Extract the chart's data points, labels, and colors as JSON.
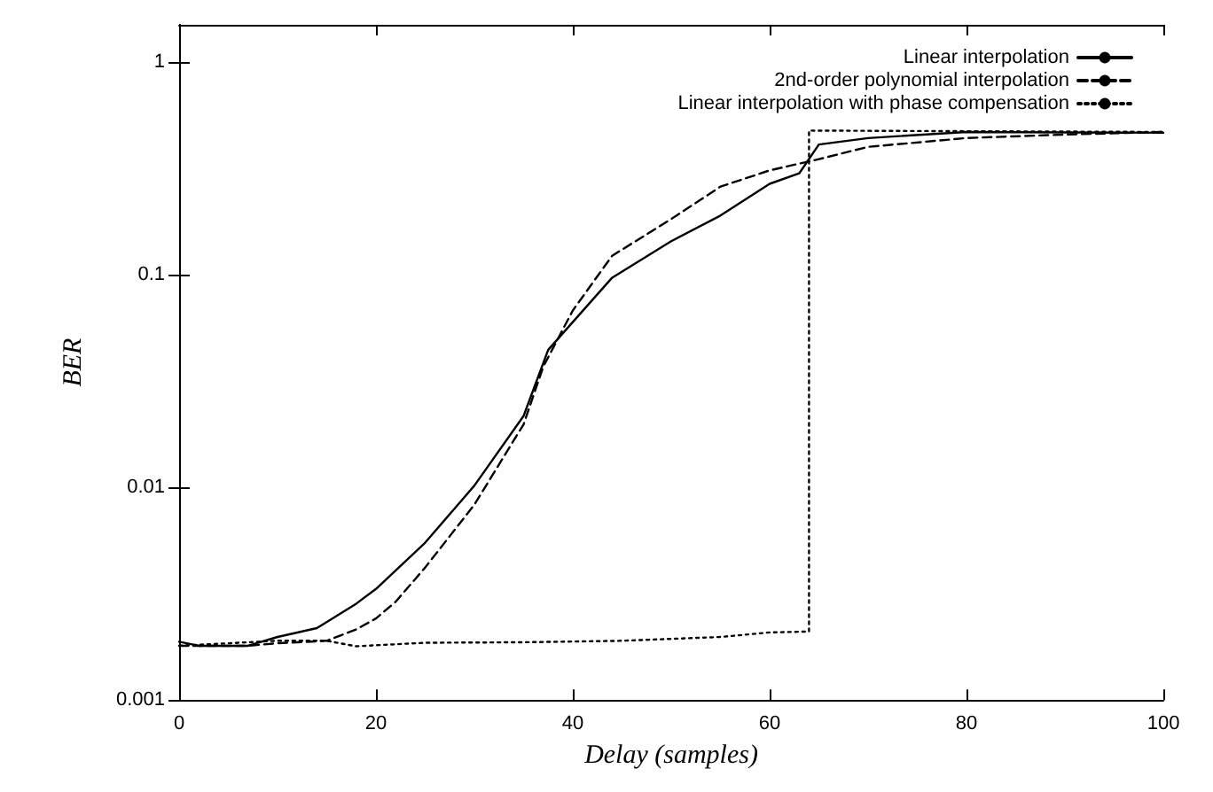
{
  "chart_data": {
    "type": "line",
    "xlabel": "Delay (samples)",
    "ylabel": "BER",
    "log": "y",
    "grid": false,
    "legend": "top right",
    "marker": "none",
    "xlim": [
      0,
      100
    ],
    "xticks": [
      0,
      20,
      40,
      60,
      80,
      100
    ],
    "ylim": [
      0.001,
      1.5
    ],
    "yticks": [
      0.001,
      0.01,
      0.1,
      1
    ],
    "series": [
      {
        "name": "Linear interpolation",
        "color": "#000000",
        "line_style": "solid",
        "x": [
          0,
          2,
          7,
          10,
          14,
          18,
          20,
          25,
          30,
          35,
          37.5,
          44,
          50,
          55,
          60,
          63,
          65,
          70,
          80,
          100
        ],
        "values": [
          0.00188,
          0.0018,
          0.0018,
          0.00198,
          0.00218,
          0.00284,
          0.00333,
          0.0055,
          0.0102,
          0.0217,
          0.0444,
          0.097,
          0.144,
          0.19,
          0.268,
          0.3,
          0.41,
          0.44,
          0.47,
          0.466
        ]
      },
      {
        "name": "2nd-order polynomial interpolation",
        "color": "#000000",
        "line_style": "dashed",
        "x": [
          0,
          7,
          10,
          15,
          18,
          20,
          22,
          25,
          30,
          35,
          37,
          40,
          44,
          50,
          55,
          60,
          65,
          70,
          80,
          90,
          100
        ],
        "values": [
          0.0018,
          0.0018,
          0.00185,
          0.0019,
          0.00215,
          0.00242,
          0.0029,
          0.0042,
          0.0083,
          0.0198,
          0.037,
          0.068,
          0.123,
          0.183,
          0.26,
          0.31,
          0.35,
          0.4,
          0.44,
          0.457,
          0.47
        ]
      },
      {
        "name": "Linear interpolation with phase compensation",
        "color": "#000000",
        "line_style": "dotted",
        "x": [
          0,
          10,
          15,
          18,
          25,
          35,
          45,
          55,
          60,
          64,
          64,
          100
        ],
        "values": [
          0.0018,
          0.0019,
          0.0019,
          0.00179,
          0.00186,
          0.00187,
          0.0019,
          0.00198,
          0.00208,
          0.0021,
          0.477,
          0.47
        ]
      }
    ]
  }
}
